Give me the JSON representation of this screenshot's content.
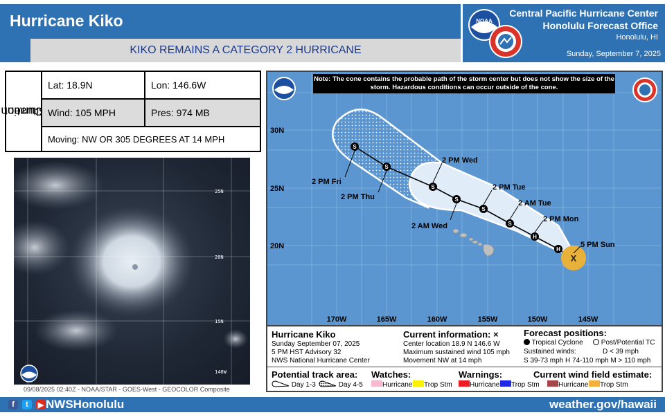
{
  "header": {
    "title": "Hurricane Kiko",
    "subtitle": "KIKO REMAINS A CATEGORY 2 HURRICANE",
    "office_name": "Central Pacific Hurricane Center",
    "office_sub": "Honolulu Forecast Office",
    "office_city": "Honolulu, HI",
    "date": "Sunday, September 7, 2025",
    "noaa_logo_text": "NOAA"
  },
  "situation": {
    "label_line1": "Current",
    "label_line2": "Situation",
    "lat": "Lat: 18.9N",
    "lon": "Lon: 146.6W",
    "wind": "Wind: 105 MPH",
    "pres": "Pres: 974 MB",
    "moving": "Moving: NW OR 305 DEGREES AT 14 MPH"
  },
  "satellite": {
    "caption": "09/08/2025 02:40Z - NOAA/STAR - GOES-West - GEOCOLOR Composite",
    "grid_labels": [
      "25N",
      "20N",
      "15N",
      "140W"
    ]
  },
  "map": {
    "note": "Note: The cone contains the probable path of the storm center but does not show the size of the storm. Hazardous conditions can occur outside of the cone.",
    "lat_labels": [
      "30N",
      "25N",
      "20N"
    ],
    "lon_labels": [
      "170W",
      "165W",
      "160W",
      "155W",
      "150W",
      "145W"
    ],
    "current": {
      "label": "5 PM Sun",
      "symbol": "X"
    },
    "forecast_points": [
      {
        "label": "2 PM Mon",
        "symbol": "H"
      },
      {
        "label": "",
        "symbol": "H"
      },
      {
        "label": "2 AM Tue",
        "symbol": "S"
      },
      {
        "label": "2 PM Tue",
        "symbol": "S"
      },
      {
        "label": "2 AM Wed",
        "symbol": "S"
      },
      {
        "label": "2 PM Wed",
        "symbol": "S"
      },
      {
        "label": "2 PM Thu",
        "symbol": "S"
      },
      {
        "label": "2 PM Fri",
        "symbol": "S"
      }
    ],
    "colors": {
      "ocean": "#5b96d0",
      "land": "#bfbfbf",
      "cone": "#e0ecf8",
      "current_wind": "#e8b13a"
    }
  },
  "legend": {
    "storm_name": "Hurricane Kiko",
    "line1": "Sunday September 07, 2025",
    "line2": "5 PM HST Advisory 32",
    "line3": "NWS National Hurricane Center",
    "current_title": "Current information: ×",
    "center": "Center location 18.9 N 146.6 W",
    "max_wind": "Maximum sustained wind 105 mph",
    "movement": "Movement NW at 14 mph",
    "forecast_title": "Forecast positions:",
    "tc": "Tropical Cyclone",
    "post_tc": "Post/Potential TC",
    "sustained": "Sustained winds:",
    "d_range": "D < 39 mph",
    "ranges": "S 39-73 mph  H 74-110 mph  M > 110 mph",
    "track_area": "Potential track area:",
    "day13": "Day 1-3",
    "day45": "Day 4-5",
    "watches": "Watches:",
    "warnings": "Warnings:",
    "wind_field": "Current wind field estimate:",
    "hurricane": "Hurricane",
    "trop_stm": "Trop Stm",
    "watch_colors": {
      "hurricane": "#f7b9cf",
      "trop_stm": "#fbf100"
    },
    "warning_colors": {
      "hurricane": "#ee1c24",
      "trop_stm": "#1f29e8"
    },
    "wind_colors": {
      "hurricane": "#a6464b",
      "trop_stm": "#f3b03a"
    }
  },
  "footer": {
    "handle": "NWSHonolulu",
    "url": "weather.gov/hawaii",
    "icons": [
      "facebook-icon",
      "twitter-icon",
      "youtube-icon"
    ]
  }
}
